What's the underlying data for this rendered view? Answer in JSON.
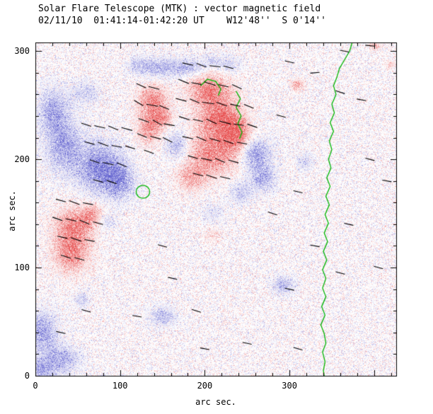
{
  "chart_data": {
    "type": "heatmap",
    "title": "Solar Flare Telescope (MTK) : vector magnetic field",
    "subtitle": "02/11/10  01:41:14-01:42:20 UT    W12'48''  S 0'14''",
    "xlabel": "arc sec.",
    "ylabel": "arc sec.",
    "xlim": [
      0,
      426
    ],
    "ylim": [
      0,
      308
    ],
    "xticks": [
      0,
      100,
      200,
      300
    ],
    "yticks": [
      0,
      100,
      200,
      300
    ],
    "minor_tick_interval": 20,
    "grid": false,
    "colors": {
      "positive": "#e64545",
      "negative": "#5555cc",
      "contour": "#00b400",
      "vector": "#000000",
      "axis": "#000000",
      "background": "#ffffff"
    },
    "noise": {
      "seed": 12345,
      "speckle": 0.26,
      "mottle": 0.7
    },
    "polarity_blobs": [
      [
        138,
        255,
        17,
        14,
        0.7
      ],
      [
        134,
        229,
        14,
        14,
        0.65
      ],
      [
        150,
        239,
        12,
        9,
        0.5
      ],
      [
        205,
        265,
        25,
        14,
        0.7
      ],
      [
        217,
        239,
        25,
        18,
        0.8
      ],
      [
        209,
        206,
        29,
        20,
        0.7
      ],
      [
        184,
        183,
        17,
        12,
        0.5
      ],
      [
        238,
        222,
        15,
        16,
        0.7
      ],
      [
        46,
        140,
        23,
        16,
        0.65
      ],
      [
        42,
        114,
        21,
        18,
        0.7
      ],
      [
        67,
        150,
        13,
        10,
        0.45
      ],
      [
        309,
        269,
        7,
        5,
        0.55
      ],
      [
        401,
        305,
        7,
        4,
        0.4
      ],
      [
        209,
        130,
        10,
        7,
        0.25
      ],
      [
        420,
        288,
        6,
        4,
        0.3
      ],
      [
        21,
        245,
        18,
        20,
        -0.55
      ],
      [
        33,
        212,
        21,
        23,
        -0.6
      ],
      [
        75,
        193,
        25,
        23,
        -0.75
      ],
      [
        100,
        180,
        17,
        16,
        -0.6
      ],
      [
        58,
        262,
        17,
        10,
        -0.35
      ],
      [
        146,
        285,
        23,
        9,
        -0.5
      ],
      [
        180,
        285,
        17,
        8,
        -0.45
      ],
      [
        209,
        291,
        13,
        7,
        -0.3
      ],
      [
        230,
        288,
        12,
        8,
        -0.3
      ],
      [
        120,
        287,
        12,
        8,
        -0.3
      ],
      [
        167,
        213,
        13,
        13,
        -0.5
      ],
      [
        259,
        206,
        18,
        13,
        -0.65
      ],
      [
        268,
        183,
        15,
        12,
        -0.55
      ],
      [
        242,
        170,
        13,
        10,
        -0.4
      ],
      [
        318,
        198,
        10,
        8,
        -0.3
      ],
      [
        8,
        41,
        17,
        18,
        -0.6
      ],
      [
        29,
        15,
        21,
        13,
        -0.55
      ],
      [
        4,
        5,
        15,
        10,
        -0.5
      ],
      [
        150,
        55,
        15,
        9,
        -0.45
      ],
      [
        293,
        84,
        12,
        8,
        -0.5
      ],
      [
        54,
        71,
        8,
        7,
        -0.35
      ],
      [
        84,
        143,
        10,
        8,
        -0.3
      ],
      [
        209,
        150,
        14,
        10,
        -0.2
      ]
    ],
    "contours": {
      "limb_line": [
        [
          374,
          308
        ],
        [
          371,
          300
        ],
        [
          365,
          292
        ],
        [
          359,
          284
        ],
        [
          356,
          276
        ],
        [
          352,
          268
        ],
        [
          355,
          260
        ],
        [
          350,
          251
        ],
        [
          353,
          243
        ],
        [
          348,
          234
        ],
        [
          352,
          226
        ],
        [
          347,
          217
        ],
        [
          350,
          209
        ],
        [
          346,
          200
        ],
        [
          349,
          192
        ],
        [
          344,
          183
        ],
        [
          348,
          175
        ],
        [
          343,
          166
        ],
        [
          347,
          158
        ],
        [
          342,
          149
        ],
        [
          346,
          141
        ],
        [
          341,
          132
        ],
        [
          345,
          124
        ],
        [
          340,
          115
        ],
        [
          344,
          107
        ],
        [
          339,
          98
        ],
        [
          343,
          90
        ],
        [
          339,
          81
        ],
        [
          343,
          73
        ],
        [
          338,
          64
        ],
        [
          342,
          56
        ],
        [
          337,
          47
        ],
        [
          341,
          39
        ],
        [
          343,
          30
        ],
        [
          339,
          22
        ],
        [
          342,
          13
        ],
        [
          340,
          5
        ],
        [
          341,
          0
        ]
      ],
      "inner_segments": [
        [
          [
            195,
            268
          ],
          [
            203,
            274
          ],
          [
            213,
            272
          ],
          [
            219,
            265
          ],
          [
            216,
            259
          ]
        ],
        [
          [
            237,
            263
          ],
          [
            242,
            256
          ],
          [
            237,
            248
          ],
          [
            243,
            240
          ],
          [
            239,
            233
          ],
          [
            244,
            225
          ],
          [
            241,
            219
          ]
        ]
      ],
      "inner_ellipse": {
        "cx": 127,
        "cy": 170,
        "rx": 8,
        "ry": 6
      }
    },
    "field_vectors": [
      [
        125,
        268,
        -20,
        12
      ],
      [
        140,
        266,
        -12,
        13
      ],
      [
        122,
        252,
        -25,
        12
      ],
      [
        138,
        250,
        -8,
        14
      ],
      [
        152,
        248,
        -18,
        12
      ],
      [
        128,
        236,
        -15,
        13
      ],
      [
        144,
        234,
        -24,
        12
      ],
      [
        158,
        232,
        -8,
        13
      ],
      [
        126,
        222,
        -18,
        12
      ],
      [
        142,
        220,
        -12,
        13
      ],
      [
        156,
        218,
        -22,
        12
      ],
      [
        134,
        207,
        -16,
        12
      ],
      [
        180,
        288,
        -10,
        13
      ],
      [
        196,
        287,
        -16,
        12
      ],
      [
        212,
        286,
        -5,
        13
      ],
      [
        228,
        285,
        -12,
        12
      ],
      [
        175,
        272,
        -18,
        13
      ],
      [
        190,
        270,
        -8,
        12
      ],
      [
        206,
        270,
        -14,
        14
      ],
      [
        222,
        268,
        -10,
        12
      ],
      [
        238,
        267,
        -20,
        12
      ],
      [
        172,
        255,
        -12,
        13
      ],
      [
        188,
        254,
        -18,
        12
      ],
      [
        204,
        252,
        -6,
        14
      ],
      [
        220,
        251,
        -15,
        13
      ],
      [
        236,
        250,
        -10,
        12
      ],
      [
        252,
        249,
        -18,
        12
      ],
      [
        176,
        238,
        -14,
        13
      ],
      [
        192,
        236,
        -10,
        12
      ],
      [
        208,
        235,
        -20,
        13
      ],
      [
        224,
        234,
        -12,
        14
      ],
      [
        240,
        232,
        -6,
        12
      ],
      [
        256,
        231,
        -15,
        12
      ],
      [
        180,
        220,
        -10,
        13
      ],
      [
        196,
        219,
        -18,
        12
      ],
      [
        212,
        218,
        -12,
        13
      ],
      [
        228,
        216,
        -15,
        12
      ],
      [
        244,
        215,
        -8,
        12
      ],
      [
        186,
        202,
        -14,
        12
      ],
      [
        202,
        200,
        -10,
        13
      ],
      [
        218,
        199,
        -18,
        12
      ],
      [
        234,
        198,
        -12,
        12
      ],
      [
        192,
        186,
        -12,
        12
      ],
      [
        208,
        184,
        -15,
        13
      ],
      [
        224,
        183,
        -10,
        12
      ],
      [
        60,
        232,
        -14,
        12
      ],
      [
        76,
        230,
        -10,
        13
      ],
      [
        92,
        229,
        -18,
        12
      ],
      [
        108,
        228,
        -12,
        13
      ],
      [
        64,
        215,
        -12,
        12
      ],
      [
        80,
        214,
        -16,
        13
      ],
      [
        96,
        212,
        -8,
        12
      ],
      [
        112,
        211,
        -14,
        12
      ],
      [
        70,
        198,
        -15,
        12
      ],
      [
        86,
        196,
        -10,
        13
      ],
      [
        102,
        195,
        -18,
        12
      ],
      [
        74,
        180,
        -12,
        12
      ],
      [
        90,
        179,
        -15,
        12
      ],
      [
        30,
        162,
        -12,
        12
      ],
      [
        46,
        160,
        -16,
        13
      ],
      [
        62,
        159,
        -8,
        12
      ],
      [
        26,
        145,
        -15,
        12
      ],
      [
        42,
        144,
        -10,
        13
      ],
      [
        58,
        142,
        -18,
        12
      ],
      [
        74,
        141,
        -12,
        12
      ],
      [
        32,
        128,
        -10,
        12
      ],
      [
        48,
        126,
        -15,
        13
      ],
      [
        64,
        125,
        -8,
        12
      ],
      [
        36,
        110,
        -14,
        12
      ],
      [
        52,
        108,
        -12,
        12
      ],
      [
        300,
        290,
        -10,
        11
      ],
      [
        330,
        280,
        4,
        11
      ],
      [
        360,
        262,
        -14,
        11
      ],
      [
        385,
        255,
        -8,
        11
      ],
      [
        290,
        240,
        -12,
        11
      ],
      [
        310,
        170,
        -10,
        11
      ],
      [
        280,
        150,
        -14,
        11
      ],
      [
        330,
        120,
        -8,
        11
      ],
      [
        360,
        95,
        -12,
        11
      ],
      [
        300,
        80,
        -10,
        11
      ],
      [
        150,
        120,
        -12,
        11
      ],
      [
        162,
        90,
        -10,
        11
      ],
      [
        190,
        60,
        -14,
        11
      ],
      [
        120,
        55,
        -8,
        11
      ],
      [
        60,
        60,
        -12,
        11
      ],
      [
        30,
        40,
        -10,
        11
      ],
      [
        395,
        200,
        -12,
        11
      ],
      [
        415,
        180,
        -8,
        11
      ],
      [
        370,
        140,
        -10,
        11
      ],
      [
        405,
        100,
        -12,
        11
      ],
      [
        250,
        30,
        -10,
        11
      ],
      [
        310,
        25,
        -12,
        11
      ],
      [
        200,
        25,
        -8,
        11
      ],
      [
        365,
        300,
        -9,
        11
      ],
      [
        395,
        305,
        -5,
        11
      ]
    ]
  }
}
